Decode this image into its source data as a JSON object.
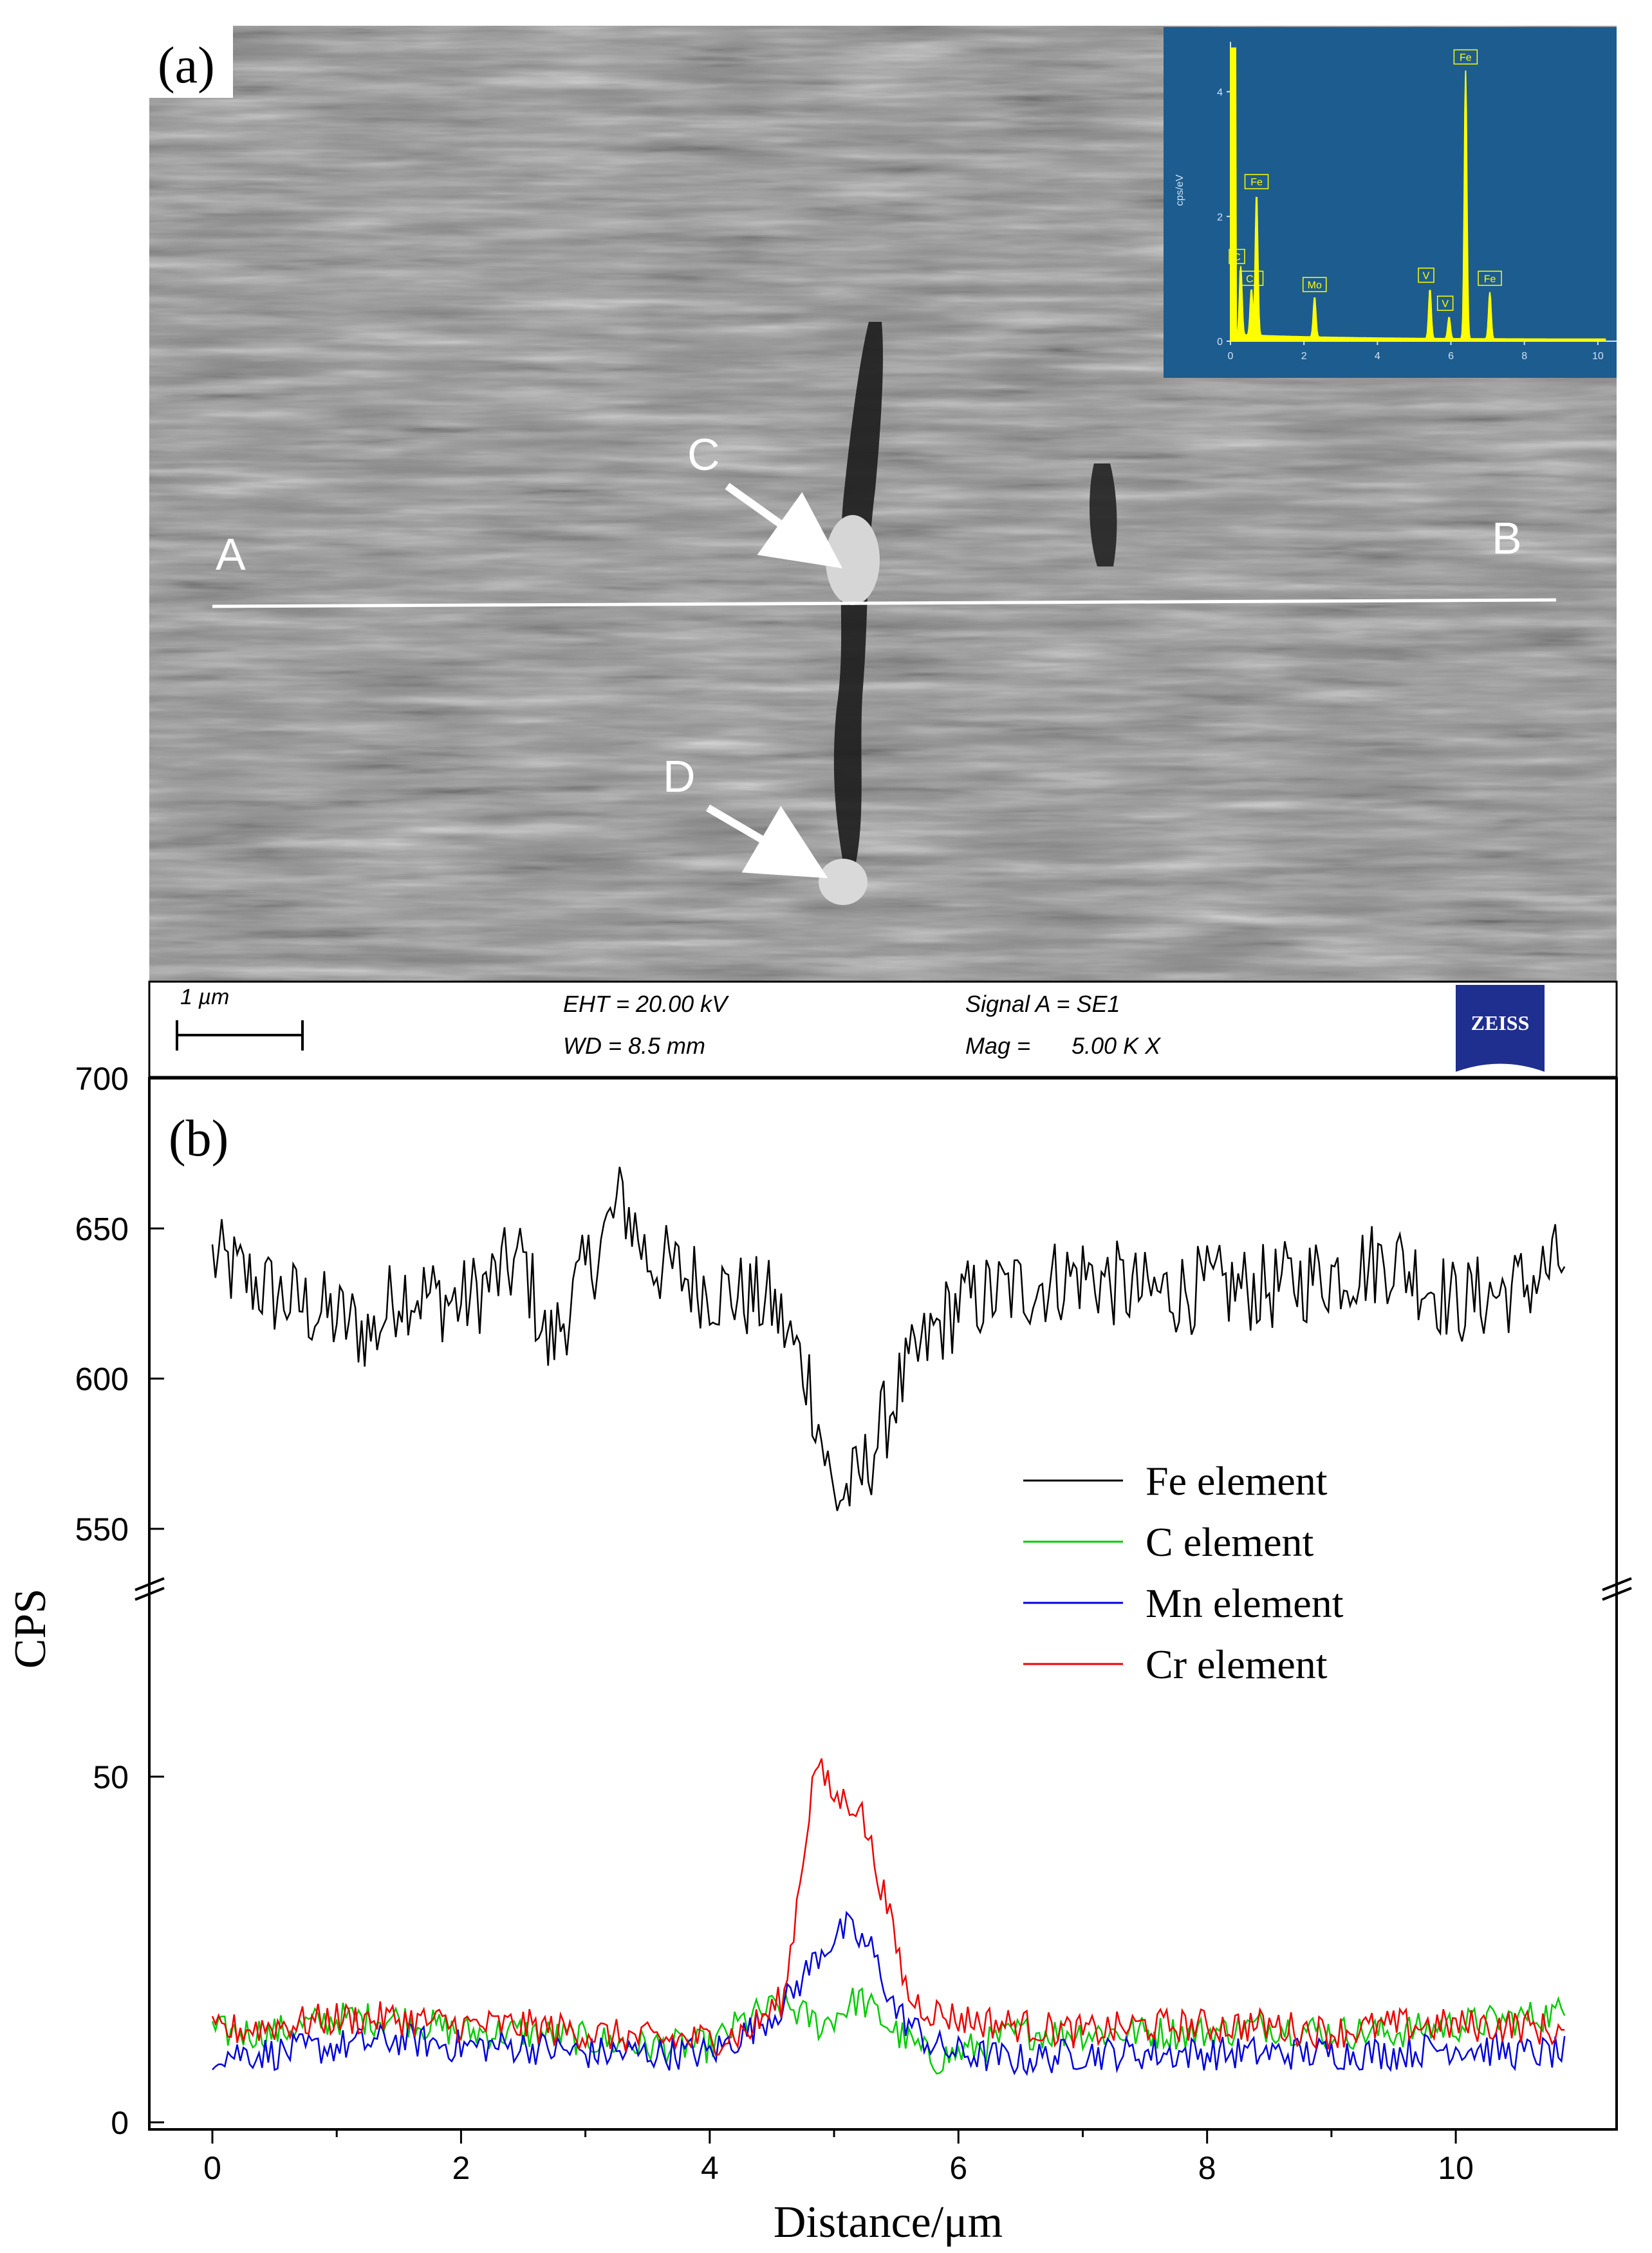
{
  "panel_a": {
    "label": "(a)",
    "line_start_label": "A",
    "line_end_label": "B",
    "point_c_label": "C",
    "point_d_label": "D",
    "info_bar": {
      "scale_label": "1 µm",
      "eht": "EHT = 20.00 kV",
      "wd": "WD =  8.5 mm",
      "signal": "Signal A = SE1",
      "mag_label": "Mag =",
      "mag_value": "5.00 K X",
      "logo_text": "ZEISS",
      "logo_color": "#1f2f8f"
    },
    "eds_inset": {
      "background_color": "#1d5c8f",
      "spectrum_color": "#ffff00",
      "ylabel": "cps/eV",
      "y_ticks": [
        "0",
        "2",
        "4"
      ],
      "x_ticks": [
        "0",
        "2",
        "4",
        "6",
        "8",
        "10"
      ],
      "peaks": [
        {
          "label": "C",
          "kev": 0.28,
          "height": 1.1
        },
        {
          "label": "Cr",
          "kev": 0.57,
          "height": 0.75
        },
        {
          "label": "Fe",
          "kev": 0.71,
          "height": 2.3
        },
        {
          "label": "Mo",
          "kev": 2.29,
          "height": 0.65
        },
        {
          "label": "V",
          "kev": 5.43,
          "height": 0.8
        },
        {
          "label": "V",
          "kev": 5.95,
          "height": 0.35
        },
        {
          "label": "Fe",
          "kev": 6.4,
          "height": 4.3
        },
        {
          "label": "Fe",
          "kev": 7.06,
          "height": 0.75
        }
      ]
    }
  },
  "panel_b": {
    "label": "(b)",
    "ylabel": "CPS",
    "xlabel": "Distance/μm",
    "legend": [
      "Fe element",
      "C element",
      "Mn element",
      "Cr element"
    ]
  },
  "chart_data": {
    "type": "line",
    "xlabel": "Distance/μm",
    "ylabel": "CPS",
    "xlim": [
      -0.5,
      11.3
    ],
    "x_ticks": [
      "0",
      "2",
      "4",
      "6",
      "8",
      "10"
    ],
    "y_axis_break": true,
    "y_lower_segment": {
      "range": [
        0,
        60
      ],
      "ticks": [
        "0",
        "50"
      ]
    },
    "y_upper_segment": {
      "range": [
        540,
        700
      ],
      "ticks": [
        "550",
        "600",
        "650",
        "700"
      ]
    },
    "legend_position": "right",
    "series": [
      {
        "name": "Fe element",
        "color": "#000000",
        "segment": "upper",
        "x": [
          0,
          0.5,
          1,
          1.3,
          1.5,
          2,
          2.5,
          2.7,
          3,
          3.3,
          3.5,
          4,
          4.5,
          4.8,
          5.0,
          5.2,
          5.5,
          5.8,
          6,
          6.5,
          7,
          7.5,
          8,
          8.5,
          9,
          9.5,
          10,
          10.5,
          10.9
        ],
        "y": [
          640,
          628,
          620,
          615,
          630,
          625,
          640,
          610,
          635,
          660,
          640,
          630,
          625,
          600,
          560,
          565,
          595,
          615,
          625,
          630,
          635,
          628,
          630,
          630,
          635,
          640,
          625,
          630,
          640
        ]
      },
      {
        "name": "C element",
        "color": "#00cc00",
        "segment": "lower",
        "x": [
          0,
          0.5,
          1,
          1.5,
          2,
          2.5,
          3,
          3.5,
          4,
          4.3,
          4.6,
          4.9,
          5.2,
          5.5,
          5.8,
          6,
          6.5,
          7,
          7.5,
          8,
          8.5,
          9,
          9.5,
          10,
          10.5,
          10.9
        ],
        "y": [
          13,
          13,
          15,
          15,
          13,
          13,
          12,
          11,
          11,
          15,
          17,
          14,
          18,
          13,
          9,
          10,
          13,
          13,
          13,
          13,
          14,
          13,
          13,
          14,
          15,
          16
        ]
      },
      {
        "name": "Mn element",
        "color": "#0000dd",
        "segment": "lower",
        "x": [
          0,
          0.5,
          1,
          1.5,
          2,
          2.5,
          3,
          3.5,
          4,
          4.3,
          4.6,
          4.9,
          5.1,
          5.3,
          5.5,
          5.8,
          6,
          6.5,
          7,
          7.5,
          8,
          8.5,
          9,
          9.5,
          10,
          10.5,
          10.9
        ],
        "y": [
          10,
          10,
          11,
          12,
          11,
          11,
          10,
          10,
          10,
          13,
          17,
          25,
          28,
          25,
          16,
          11,
          10,
          9,
          10,
          10,
          10,
          10,
          10,
          10,
          11,
          10,
          10
        ]
      },
      {
        "name": "Cr element",
        "color": "#ee0000",
        "segment": "lower",
        "x": [
          0,
          0.5,
          1,
          1.5,
          2,
          2.5,
          3,
          3.5,
          4,
          4.3,
          4.6,
          4.85,
          5.0,
          5.2,
          5.4,
          5.6,
          5.8,
          6,
          6.5,
          7,
          7.5,
          8,
          8.5,
          9,
          9.5,
          10,
          10.5,
          10.9
        ],
        "y": [
          13,
          14,
          15,
          15,
          14,
          14,
          13,
          12,
          12,
          13,
          18,
          52,
          47,
          46,
          33,
          18,
          16,
          15,
          14,
          13,
          14,
          14,
          14,
          13,
          14,
          14,
          14,
          13
        ]
      }
    ]
  }
}
